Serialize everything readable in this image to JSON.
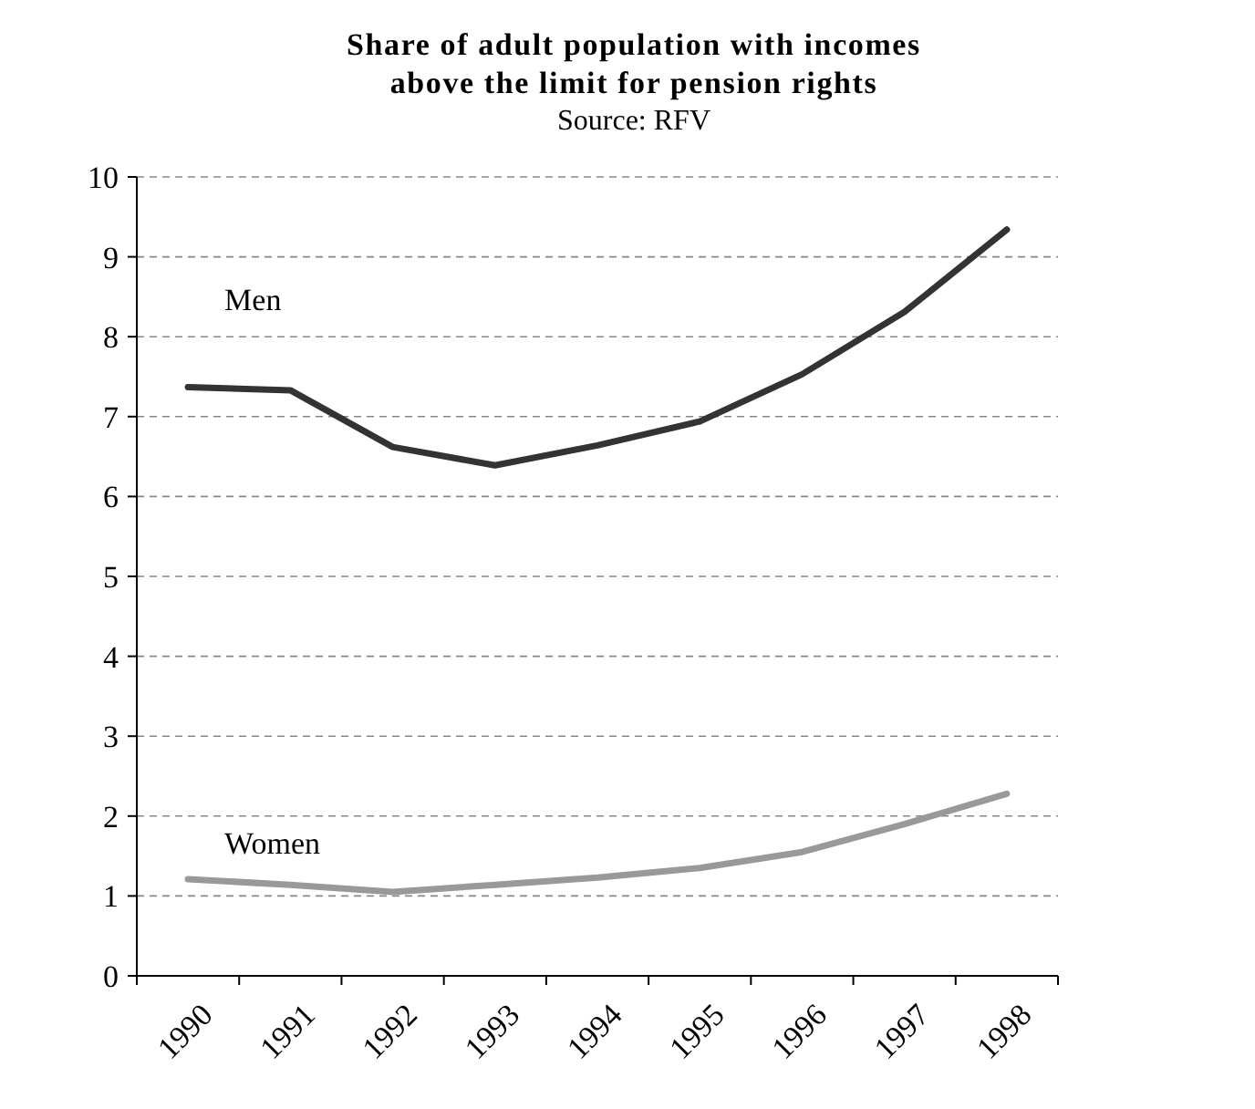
{
  "chart_data": {
    "type": "line",
    "title": "Share of adult population with incomes above the limit for pension rights",
    "subtitle": "Source: RFV",
    "categories": [
      "1990",
      "1991",
      "1992",
      "1993",
      "1994",
      "1995",
      "1996",
      "1997",
      "1998"
    ],
    "series": [
      {
        "name": "Men",
        "color": "#333333",
        "values": [
          7.37,
          7.33,
          6.62,
          6.39,
          6.64,
          6.94,
          7.53,
          8.31,
          9.34
        ]
      },
      {
        "name": "Women",
        "color": "#999999",
        "values": [
          1.21,
          1.14,
          1.05,
          1.14,
          1.23,
          1.35,
          1.55,
          1.9,
          2.28
        ]
      }
    ],
    "ylim": [
      0,
      10
    ],
    "yticks": [
      0,
      1,
      2,
      3,
      4,
      5,
      6,
      7,
      8,
      9,
      10
    ],
    "grid": "y",
    "marker": "none",
    "line_style": "solid"
  }
}
